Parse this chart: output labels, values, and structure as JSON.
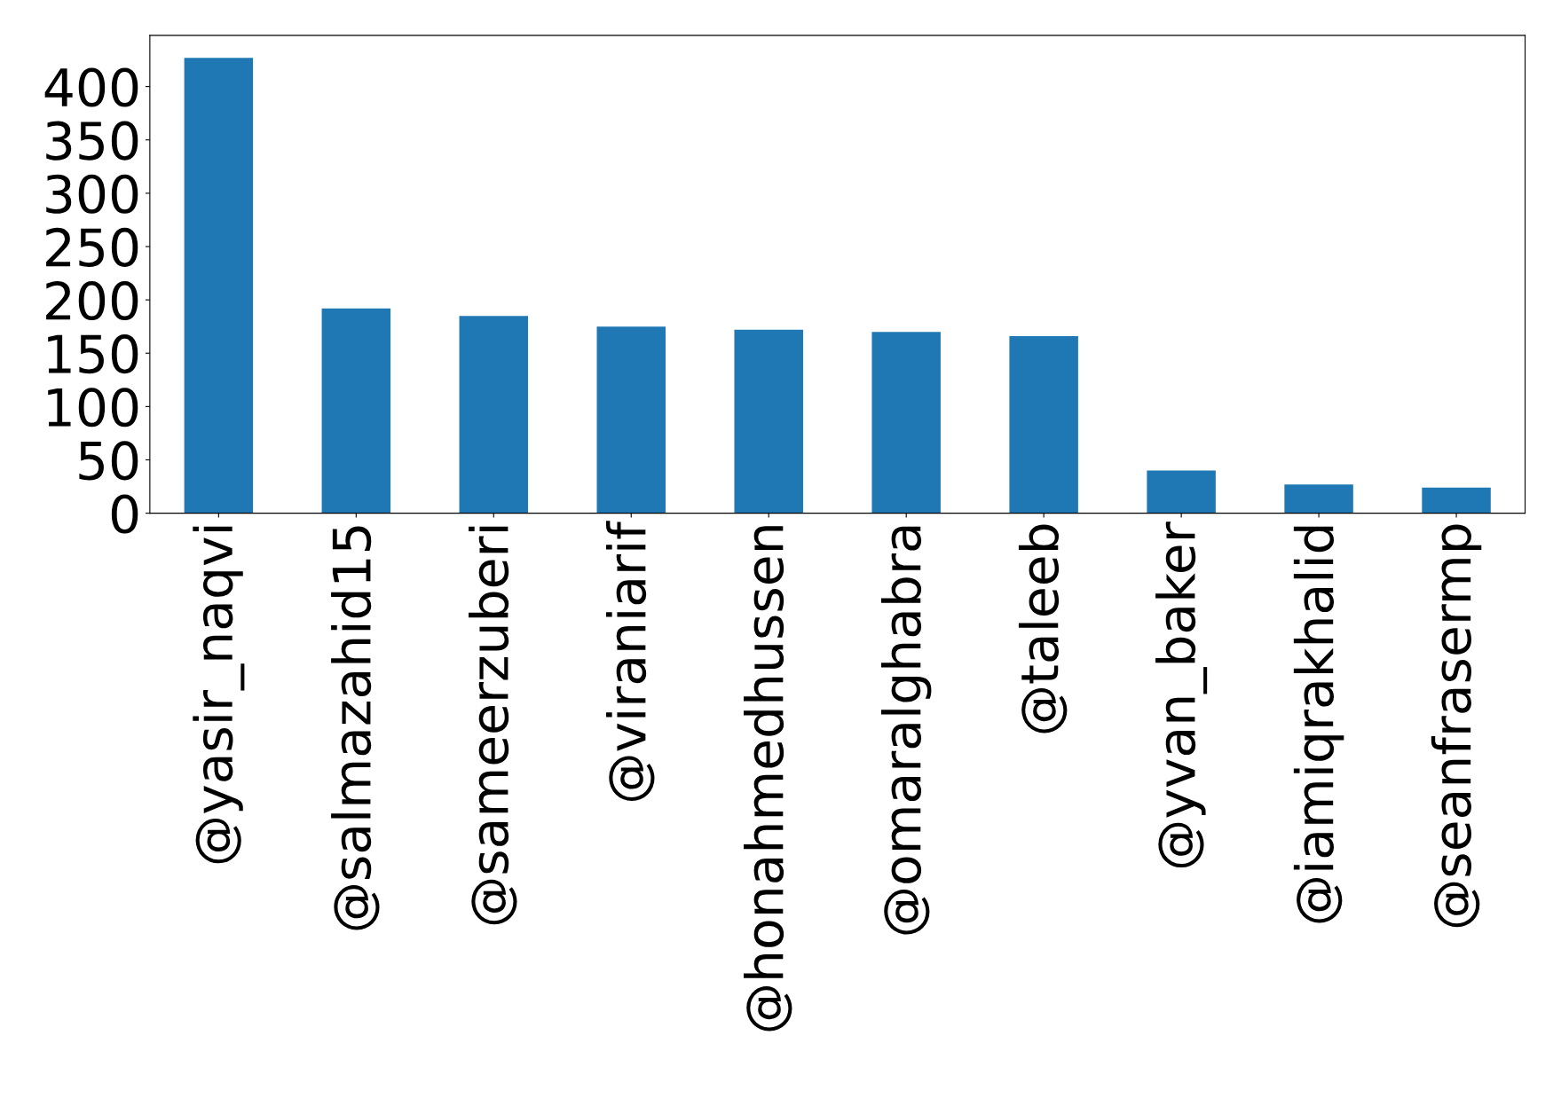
{
  "chart_data": {
    "type": "bar",
    "categories": [
      "@yasir_naqvi",
      "@salmazahid15",
      "@sameerzuberi",
      "@viraniarif",
      "@honahmedhussen",
      "@omaralghabra",
      "@taleeb",
      "@yvan_baker",
      "@iamiqrakhalid",
      "@seanfrasermp"
    ],
    "values": [
      427,
      192,
      185,
      175,
      172,
      170,
      166,
      40,
      27,
      24
    ],
    "color": "#1f77b4",
    "ylim": [
      0,
      448
    ],
    "yticks": [
      0,
      50,
      100,
      150,
      200,
      250,
      300,
      350,
      400
    ],
    "grid": false,
    "legend": false
  }
}
